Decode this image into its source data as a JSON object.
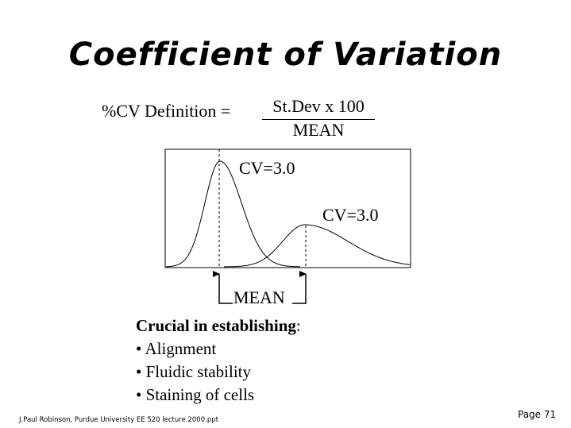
{
  "slide": {
    "title": "Coefficient of Variation",
    "definition": {
      "label": "%CV Definition =",
      "numerator": "St.Dev x 100",
      "denominator": "MEAN"
    },
    "diagram": {
      "peak1_label": "CV=3.0",
      "peak2_label": "CV=3.0",
      "mean_label": "MEAN"
    },
    "notes": {
      "heading_bold": "Crucial in establishing",
      "heading_suffix": ":",
      "bullets": [
        "• Alignment",
        "• Fluidic stability",
        "• Staining of cells"
      ]
    },
    "footer": "J.Paul Robinson, Purdue University EE 520 lecture 2000.ppt",
    "page_label": "Page 71"
  }
}
